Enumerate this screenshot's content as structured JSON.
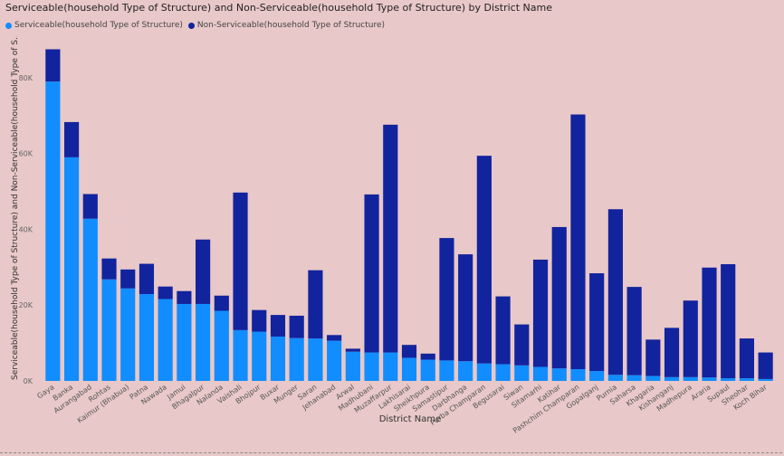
{
  "chart_data": {
    "type": "bar",
    "stacked": true,
    "title": "Serviceable(household Type of Structure) and Non-Serviceable(household Type of Structure) by District Name",
    "xlabel": "District Name",
    "ylabel": "Serviceable(household Type of Structure) and Non-Serviceable(household Type of S...",
    "ylim": [
      0,
      90000
    ],
    "yticks": [
      {
        "value": 0,
        "label": "0K"
      },
      {
        "value": 20000,
        "label": "20K"
      },
      {
        "value": 40000,
        "label": "40K"
      },
      {
        "value": 60000,
        "label": "60K"
      },
      {
        "value": 80000,
        "label": "80K"
      }
    ],
    "grid": false,
    "legend_position": "top-left",
    "categories": [
      "Gaya",
      "Banka",
      "Aurangabad",
      "Rohtas",
      "Kaimur (Bhabua)",
      "Patna",
      "Nawada",
      "Jamui",
      "Bhagalpur",
      "Nalanda",
      "Vaishali",
      "Bhojpur",
      "Buxar",
      "Munger",
      "Saran",
      "Jehanabad",
      "Arwal",
      "Madhubani",
      "Muzaffarpur",
      "Lakhisarai",
      "Sheikhpura",
      "Samastipur",
      "Darbhanga",
      "Purba Champaran",
      "Begusarai",
      "Siwan",
      "Sitamarhi",
      "Katihar",
      "Pashchim Champaran",
      "Gopalganj",
      "Purnia",
      "Saharsa",
      "Khagaria",
      "Kishanganj",
      "Madhepura",
      "Araria",
      "Supaul",
      "Sheohar",
      "Koch Bihar"
    ],
    "series": [
      {
        "name": "Serviceable(household Type of Structure)",
        "color": "#118dff",
        "values": [
          79000,
          59000,
          42800,
          26800,
          24400,
          22900,
          21600,
          20300,
          20300,
          18500,
          13400,
          13000,
          11700,
          11300,
          11200,
          10600,
          7700,
          7500,
          7500,
          6100,
          5600,
          5400,
          5200,
          4600,
          4400,
          4100,
          3700,
          3300,
          3100,
          2600,
          1600,
          1500,
          1300,
          1000,
          1000,
          900,
          700,
          700,
          500
        ]
      },
      {
        "name": "Non-Serviceable(household Type of Structure)",
        "color": "#12239e",
        "values": [
          8500,
          9300,
          6500,
          5500,
          5000,
          8000,
          3300,
          3400,
          17000,
          4000,
          36300,
          5700,
          5700,
          5900,
          18000,
          1500,
          800,
          41700,
          60100,
          3400,
          1600,
          32300,
          28200,
          54800,
          17900,
          10800,
          28300,
          37300,
          67200,
          25800,
          43700,
          23300,
          9600,
          13000,
          20200,
          29000,
          30100,
          10500,
          7000
        ]
      }
    ]
  }
}
